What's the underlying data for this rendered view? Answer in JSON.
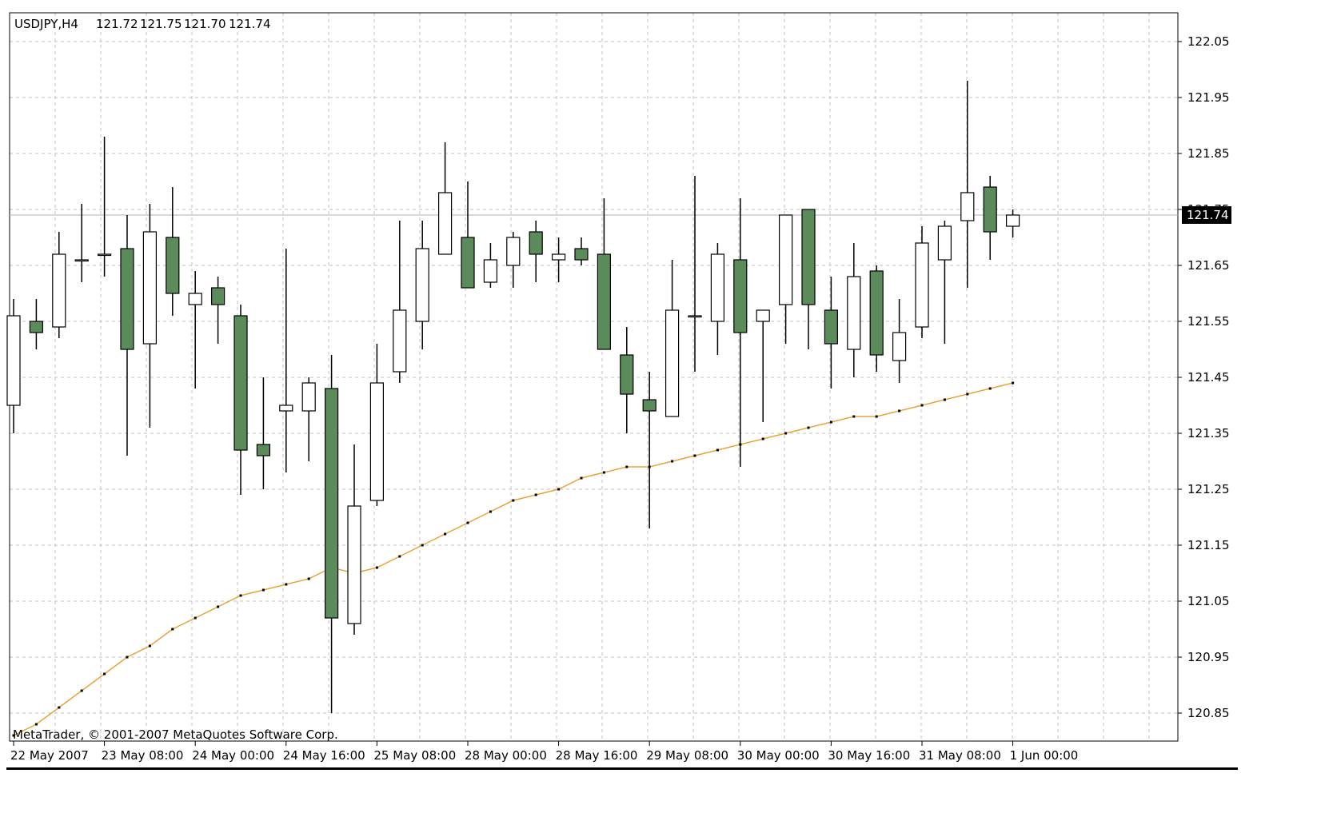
{
  "chart_data": {
    "type": "candlestick",
    "symbol_header": "USDJPY,H4",
    "ohlc_header": [
      "121.72",
      "121.75",
      "121.70",
      "121.74"
    ],
    "copyright": "MetaTrader, © 2001-2007 MetaQuotes Software Corp.",
    "current_price_label": "121.74",
    "current_price": 121.74,
    "ylim": [
      120.8,
      122.08
    ],
    "y_ticks": [
      "122.05",
      "121.95",
      "121.85",
      "121.75",
      "121.65",
      "121.55",
      "121.45",
      "121.35",
      "121.25",
      "121.15",
      "121.05",
      "120.95",
      "120.85"
    ],
    "x_tick_labels": [
      {
        "bar": 0,
        "label": "22 May 2007"
      },
      {
        "bar": 4,
        "label": "23 May 08:00"
      },
      {
        "bar": 8,
        "label": "24 May 00:00"
      },
      {
        "bar": 12,
        "label": "24 May 16:00"
      },
      {
        "bar": 16,
        "label": "25 May 08:00"
      },
      {
        "bar": 20,
        "label": "28 May 00:00"
      },
      {
        "bar": 24,
        "label": "28 May 16:00"
      },
      {
        "bar": 28,
        "label": "29 May 08:00"
      },
      {
        "bar": 32,
        "label": "30 May 00:00"
      },
      {
        "bar": 36,
        "label": "30 May 16:00"
      },
      {
        "bar": 40,
        "label": "31 May 08:00"
      },
      {
        "bar": 44,
        "label": "1 Jun 00:00"
      }
    ],
    "bull_color": "#ffffff",
    "bear_color": "#5b8a5b",
    "ma_color": "#e8a33a",
    "candles": [
      {
        "o": 121.4,
        "h": 121.59,
        "l": 121.35,
        "c": 121.56
      },
      {
        "o": 121.55,
        "h": 121.59,
        "l": 121.5,
        "c": 121.53
      },
      {
        "o": 121.54,
        "h": 121.71,
        "l": 121.52,
        "c": 121.67
      },
      {
        "o": 121.66,
        "h": 121.76,
        "l": 121.62,
        "c": 121.66
      },
      {
        "o": 121.67,
        "h": 121.88,
        "l": 121.63,
        "c": 121.67
      },
      {
        "o": 121.68,
        "h": 121.74,
        "l": 121.31,
        "c": 121.5
      },
      {
        "o": 121.51,
        "h": 121.76,
        "l": 121.36,
        "c": 121.71
      },
      {
        "o": 121.7,
        "h": 121.79,
        "l": 121.56,
        "c": 121.6
      },
      {
        "o": 121.58,
        "h": 121.64,
        "l": 121.43,
        "c": 121.6
      },
      {
        "o": 121.61,
        "h": 121.63,
        "l": 121.51,
        "c": 121.58
      },
      {
        "o": 121.56,
        "h": 121.58,
        "l": 121.24,
        "c": 121.32
      },
      {
        "o": 121.33,
        "h": 121.45,
        "l": 121.25,
        "c": 121.31
      },
      {
        "o": 121.39,
        "h": 121.68,
        "l": 121.28,
        "c": 121.4
      },
      {
        "o": 121.39,
        "h": 121.45,
        "l": 121.3,
        "c": 121.44
      },
      {
        "o": 121.43,
        "h": 121.49,
        "l": 120.85,
        "c": 121.02
      },
      {
        "o": 121.01,
        "h": 121.33,
        "l": 120.99,
        "c": 121.22
      },
      {
        "o": 121.23,
        "h": 121.51,
        "l": 121.22,
        "c": 121.44
      },
      {
        "o": 121.46,
        "h": 121.73,
        "l": 121.44,
        "c": 121.57
      },
      {
        "o": 121.55,
        "h": 121.73,
        "l": 121.5,
        "c": 121.68
      },
      {
        "o": 121.67,
        "h": 121.87,
        "l": 121.67,
        "c": 121.78
      },
      {
        "o": 121.7,
        "h": 121.8,
        "l": 121.62,
        "c": 121.61
      },
      {
        "o": 121.62,
        "h": 121.69,
        "l": 121.61,
        "c": 121.66
      },
      {
        "o": 121.65,
        "h": 121.71,
        "l": 121.61,
        "c": 121.7
      },
      {
        "o": 121.71,
        "h": 121.73,
        "l": 121.62,
        "c": 121.67
      },
      {
        "o": 121.66,
        "h": 121.7,
        "l": 121.62,
        "c": 121.67
      },
      {
        "o": 121.68,
        "h": 121.7,
        "l": 121.65,
        "c": 121.66
      },
      {
        "o": 121.67,
        "h": 121.77,
        "l": 121.5,
        "c": 121.5
      },
      {
        "o": 121.49,
        "h": 121.54,
        "l": 121.35,
        "c": 121.42
      },
      {
        "o": 121.41,
        "h": 121.46,
        "l": 121.18,
        "c": 121.39
      },
      {
        "o": 121.38,
        "h": 121.66,
        "l": 121.38,
        "c": 121.57
      },
      {
        "o": 121.56,
        "h": 121.81,
        "l": 121.46,
        "c": 121.56
      },
      {
        "o": 121.55,
        "h": 121.69,
        "l": 121.49,
        "c": 121.67
      },
      {
        "o": 121.66,
        "h": 121.77,
        "l": 121.29,
        "c": 121.53
      },
      {
        "o": 121.55,
        "h": 121.57,
        "l": 121.37,
        "c": 121.57
      },
      {
        "o": 121.58,
        "h": 121.74,
        "l": 121.51,
        "c": 121.74
      },
      {
        "o": 121.75,
        "h": 121.75,
        "l": 121.5,
        "c": 121.58
      },
      {
        "o": 121.57,
        "h": 121.63,
        "l": 121.43,
        "c": 121.51
      },
      {
        "o": 121.5,
        "h": 121.69,
        "l": 121.45,
        "c": 121.63
      },
      {
        "o": 121.64,
        "h": 121.65,
        "l": 121.46,
        "c": 121.49
      },
      {
        "o": 121.48,
        "h": 121.59,
        "l": 121.44,
        "c": 121.53
      },
      {
        "o": 121.54,
        "h": 121.72,
        "l": 121.52,
        "c": 121.69
      },
      {
        "o": 121.66,
        "h": 121.73,
        "l": 121.51,
        "c": 121.72
      },
      {
        "o": 121.73,
        "h": 121.98,
        "l": 121.61,
        "c": 121.78
      },
      {
        "o": 121.79,
        "h": 121.81,
        "l": 121.66,
        "c": 121.71
      },
      {
        "o": 121.72,
        "h": 121.75,
        "l": 121.7,
        "c": 121.74
      }
    ],
    "ma_values": [
      120.81,
      120.83,
      120.86,
      120.89,
      120.92,
      120.95,
      120.97,
      121.0,
      121.02,
      121.04,
      121.06,
      121.07,
      121.08,
      121.09,
      121.11,
      121.1,
      121.11,
      121.13,
      121.15,
      121.17,
      121.19,
      121.21,
      121.23,
      121.24,
      121.25,
      121.27,
      121.28,
      121.29,
      121.29,
      121.3,
      121.31,
      121.32,
      121.33,
      121.34,
      121.35,
      121.36,
      121.37,
      121.38,
      121.38,
      121.39,
      121.4,
      121.41,
      121.42,
      121.43,
      121.44
    ]
  }
}
